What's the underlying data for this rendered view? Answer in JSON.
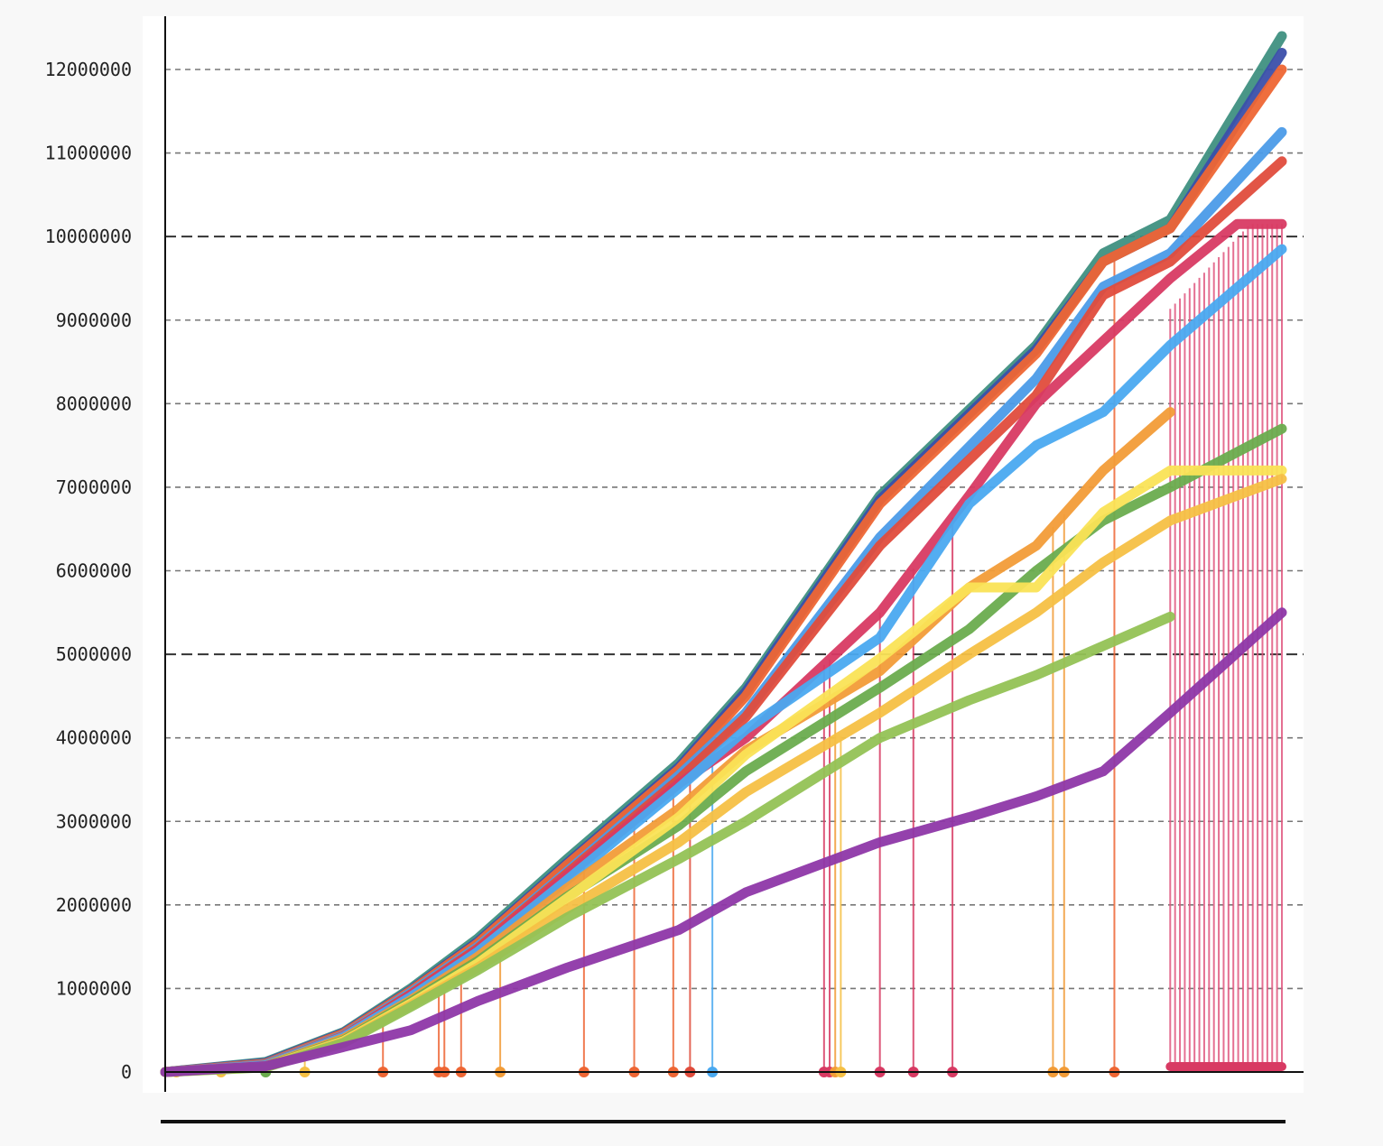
{
  "chart_data": {
    "type": "line",
    "title": "",
    "xlabel": "",
    "ylabel": "",
    "ylim": [
      0,
      12000000
    ],
    "xlim": [
      0,
      100
    ],
    "y_ticks": [
      "0",
      "1000000",
      "2000000",
      "3000000",
      "4000000",
      "5000000",
      "6000000",
      "7000000",
      "8000000",
      "9000000",
      "10000000",
      "11000000",
      "12000000"
    ],
    "x_tick_labels": [],
    "legend": "none",
    "grid": {
      "horizontal": true,
      "style": "dashed",
      "major_every": 5000000
    },
    "series": [
      {
        "color": "#3f9081",
        "x": [
          0,
          9,
          16,
          22,
          28,
          36,
          46,
          52,
          64,
          78,
          84,
          90,
          100
        ],
        "y": [
          0,
          120000,
          480000,
          1000000,
          1600000,
          2550000,
          3700000,
          4600000,
          6900000,
          8700000,
          9800000,
          10200000,
          12400000
        ]
      },
      {
        "color": "#3b4faa",
        "x": [
          0,
          9,
          16,
          22,
          28,
          36,
          46,
          52,
          64,
          78,
          84,
          90,
          100
        ],
        "y": [
          0,
          110000,
          470000,
          980000,
          1560000,
          2500000,
          3650000,
          4550000,
          6850000,
          8650000,
          9700000,
          10100000,
          12200000
        ]
      },
      {
        "color": "#ee6634",
        "x": [
          0,
          9,
          16,
          22,
          28,
          36,
          46,
          52,
          64,
          78,
          84,
          90,
          100
        ],
        "y": [
          0,
          100000,
          460000,
          970000,
          1540000,
          2480000,
          3620000,
          4500000,
          6800000,
          8600000,
          9700000,
          10100000,
          12000000
        ]
      },
      {
        "color": "#4b9be8",
        "x": [
          0,
          9,
          16,
          22,
          28,
          36,
          46,
          52,
          64,
          78,
          84,
          90,
          100
        ],
        "y": [
          0,
          90000,
          440000,
          950000,
          1500000,
          2400000,
          3550000,
          4300000,
          6400000,
          8300000,
          9400000,
          9800000,
          11250000
        ]
      },
      {
        "color": "#e04c3c",
        "x": [
          0,
          9,
          16,
          22,
          28,
          36,
          46,
          52,
          64,
          78,
          84,
          90,
          100
        ],
        "y": [
          0,
          85000,
          430000,
          930000,
          1480000,
          2380000,
          3500000,
          4250000,
          6300000,
          8100000,
          9300000,
          9700000,
          10900000
        ]
      },
      {
        "color": "#d83a63",
        "x": [
          0,
          9,
          16,
          22,
          28,
          36,
          46,
          52,
          64,
          72,
          78,
          90,
          96,
          100
        ],
        "y": [
          0,
          80000,
          420000,
          920000,
          1460000,
          2350000,
          3450000,
          4000000,
          5500000,
          6900000,
          8000000,
          9500000,
          10150000,
          10150000
        ]
      },
      {
        "color": "#4aa9f0",
        "x": [
          0,
          9,
          16,
          22,
          28,
          36,
          46,
          52,
          64,
          72,
          78,
          84,
          90,
          100
        ],
        "y": [
          0,
          80000,
          420000,
          900000,
          1440000,
          2300000,
          3400000,
          4100000,
          5200000,
          6800000,
          7500000,
          7900000,
          8700000,
          9850000
        ]
      },
      {
        "color": "#f29c38",
        "x": [
          0,
          9,
          16,
          22,
          28,
          36,
          46,
          52,
          64,
          72,
          78,
          84,
          90
        ],
        "y": [
          0,
          70000,
          400000,
          860000,
          1380000,
          2200000,
          3150000,
          3850000,
          4800000,
          5800000,
          6300000,
          7200000,
          7900000
        ]
      },
      {
        "color": "#6aac4e",
        "x": [
          0,
          9,
          16,
          22,
          28,
          36,
          46,
          52,
          64,
          72,
          78,
          84,
          90,
          100
        ],
        "y": [
          0,
          65000,
          380000,
          840000,
          1330000,
          2100000,
          2950000,
          3600000,
          4600000,
          5300000,
          6000000,
          6600000,
          7000000,
          7700000
        ]
      },
      {
        "color": "#fae356",
        "x": [
          0,
          9,
          16,
          22,
          28,
          36,
          46,
          52,
          64,
          72,
          78,
          84,
          90,
          100
        ],
        "y": [
          0,
          60000,
          370000,
          820000,
          1300000,
          2080000,
          3050000,
          3800000,
          4950000,
          5800000,
          5800000,
          6700000,
          7200000,
          7200000
        ]
      },
      {
        "color": "#f5c044",
        "x": [
          0,
          9,
          16,
          22,
          28,
          36,
          46,
          52,
          64,
          72,
          78,
          84,
          90,
          100
        ],
        "y": [
          0,
          60000,
          360000,
          800000,
          1250000,
          1950000,
          2750000,
          3350000,
          4300000,
          5000000,
          5500000,
          6100000,
          6600000,
          7100000
        ]
      },
      {
        "color": "#93c255",
        "x": [
          0,
          9,
          16,
          22,
          28,
          36,
          46,
          52,
          64,
          72,
          78,
          84,
          90
        ],
        "y": [
          0,
          55000,
          350000,
          780000,
          1220000,
          1850000,
          2550000,
          3000000,
          4000000,
          4450000,
          4750000,
          5100000,
          5450000
        ]
      },
      {
        "color": "#8e37a8",
        "x": [
          0,
          9,
          16,
          22,
          28,
          36,
          46,
          52,
          64,
          72,
          78,
          84,
          90,
          100
        ],
        "y": [
          0,
          70000,
          300000,
          500000,
          850000,
          1250000,
          1700000,
          2150000,
          2750000,
          3050000,
          3300000,
          3600000,
          4300000,
          5500000
        ]
      }
    ],
    "drop_markers": [
      {
        "color": "#ee6634",
        "x": [
          19.5,
          24.5,
          25,
          26.5,
          37.5,
          42,
          45.5,
          85
        ]
      },
      {
        "color": "#e04c3c",
        "x": [
          47
        ]
      },
      {
        "color": "#d83a63",
        "x": [
          59,
          59.5,
          64,
          67,
          70.5
        ]
      },
      {
        "color": "#4aa9f0",
        "x": [
          49
        ]
      },
      {
        "color": "#f29c38",
        "x": [
          30,
          60,
          79.5,
          80.5
        ]
      },
      {
        "color": "#f5c044",
        "x": [
          60.5,
          1,
          5,
          12.5
        ]
      },
      {
        "color": "#6aac4e",
        "x": [
          9
        ]
      }
    ],
    "pink_band": {
      "color": "#e0577f",
      "x_start": 90,
      "x_end": 100,
      "y_top": 10150000
    }
  }
}
